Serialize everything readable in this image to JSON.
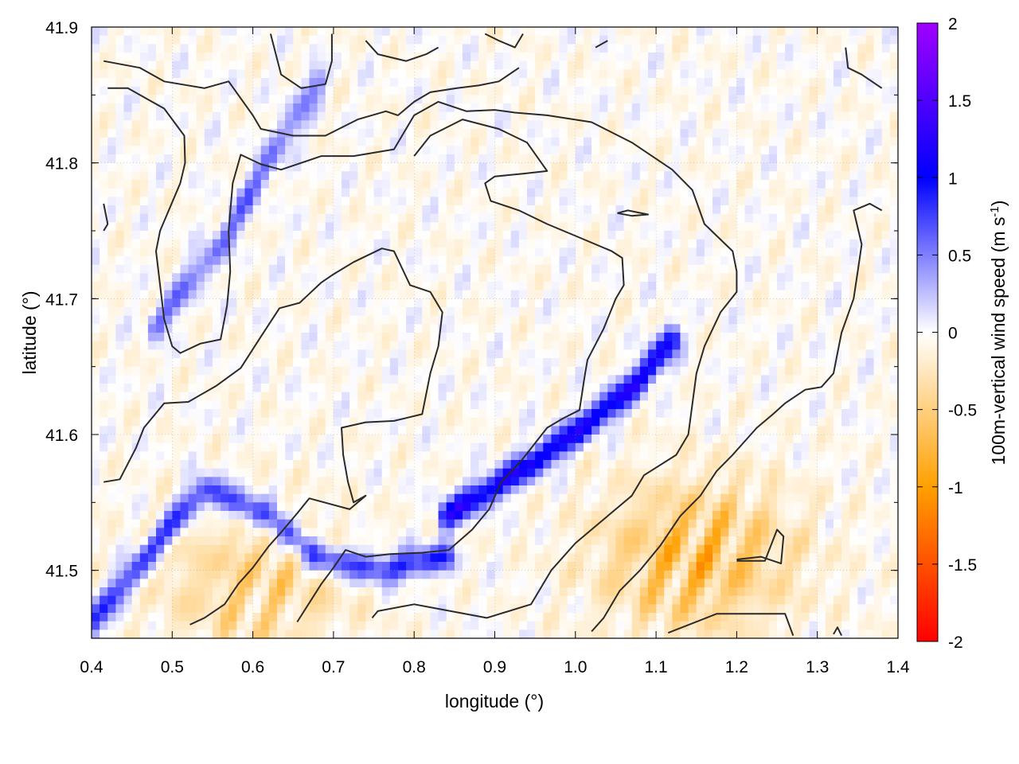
{
  "chart_data": {
    "type": "heatmap",
    "title": "",
    "xlabel": "longitude (°)",
    "ylabel": "latitude (°)",
    "colorbar_label": "100m-vertical wind speed (m s",
    "colorbar_label_sup": "-1",
    "colorbar_label_close": ")",
    "xlim": [
      0.4,
      1.4
    ],
    "ylim": [
      41.45,
      41.9
    ],
    "x_ticks": [
      0.4,
      0.5,
      0.6,
      0.7,
      0.8,
      0.9,
      1.0,
      1.1,
      1.2,
      1.3,
      1.4
    ],
    "x_tick_labels": [
      "0.4",
      "0.5",
      "0.6",
      "0.7",
      "0.8",
      "0.9",
      "1.0",
      "1.1",
      "1.2",
      "1.3",
      "1.4"
    ],
    "y_ticks": [
      41.5,
      41.6,
      41.7,
      41.8,
      41.9
    ],
    "y_tick_labels": [
      "41.5",
      "41.6",
      "41.7",
      "41.8",
      "41.9"
    ],
    "color_range": [
      -2,
      2
    ],
    "colorbar_ticks": [
      2,
      1.5,
      1,
      0.5,
      0,
      -0.5,
      -1,
      -1.5,
      -2
    ],
    "colorbar_tick_labels": [
      "2",
      "1.5",
      "1",
      "0.5",
      "0",
      "-0.5",
      "-1",
      "-1.5",
      "-2"
    ],
    "colorscale": [
      "#ff0000",
      "#ffa000",
      "#ffffff",
      "#0000ff",
      "#a000ff"
    ],
    "grid": true,
    "features": [
      {
        "type": "updraft_band",
        "value": 1.2,
        "path": [
          [
            0.84,
            41.54
          ],
          [
            0.95,
            41.58
          ],
          [
            1.02,
            41.61
          ],
          [
            1.08,
            41.64
          ],
          [
            1.12,
            41.67
          ]
        ]
      },
      {
        "type": "updraft_band",
        "value": 0.9,
        "path": [
          [
            0.4,
            41.46
          ],
          [
            0.48,
            41.52
          ],
          [
            0.54,
            41.56
          ],
          [
            0.62,
            41.54
          ],
          [
            0.68,
            41.51
          ],
          [
            0.76,
            41.5
          ],
          [
            0.84,
            41.51
          ]
        ]
      },
      {
        "type": "updraft_band",
        "value": 0.6,
        "path": [
          [
            0.48,
            41.68
          ],
          [
            0.56,
            41.74
          ],
          [
            0.62,
            41.8
          ],
          [
            0.68,
            41.86
          ]
        ]
      },
      {
        "type": "downdraft_region",
        "value": -0.8,
        "center": [
          1.15,
          41.51
        ]
      },
      {
        "type": "downdraft_region",
        "value": -0.5,
        "center": [
          0.6,
          41.49
        ]
      }
    ],
    "contours": [
      [
        [
          0.415,
          41.875
        ],
        [
          0.46,
          41.87
        ],
        [
          0.49,
          41.86
        ],
        [
          0.54,
          41.855
        ],
        [
          0.57,
          41.86
        ],
        [
          0.6,
          41.835
        ],
        [
          0.61,
          41.825
        ],
        [
          0.65,
          41.82
        ],
        [
          0.69,
          41.82
        ],
        [
          0.73,
          41.832
        ],
        [
          0.765,
          41.838
        ],
        [
          0.78,
          41.835
        ],
        [
          0.8,
          41.845
        ],
        [
          0.82,
          41.852
        ],
        [
          0.853,
          41.855
        ],
        [
          0.88,
          41.857
        ],
        [
          0.905,
          41.86
        ],
        [
          0.93,
          41.87
        ]
      ],
      [
        [
          0.622,
          41.895
        ],
        [
          0.635,
          41.865
        ],
        [
          0.66,
          41.855
        ],
        [
          0.69,
          41.858
        ],
        [
          0.698,
          41.875
        ],
        [
          0.698,
          41.895
        ]
      ],
      [
        [
          0.74,
          41.89
        ],
        [
          0.755,
          41.88
        ],
        [
          0.79,
          41.875
        ],
        [
          0.815,
          41.88
        ],
        [
          0.83,
          41.885
        ]
      ],
      [
        [
          0.888,
          41.895
        ],
        [
          0.905,
          41.89
        ],
        [
          0.925,
          41.885
        ],
        [
          0.935,
          41.895
        ]
      ],
      [
        [
          1.025,
          41.885
        ],
        [
          1.04,
          41.89
        ]
      ],
      [
        [
          1.335,
          41.885
        ],
        [
          1.338,
          41.87
        ],
        [
          1.355,
          41.865
        ],
        [
          1.38,
          41.855
        ]
      ],
      [
        [
          0.42,
          41.855
        ],
        [
          0.445,
          41.855
        ],
        [
          0.49,
          41.84
        ],
        [
          0.515,
          41.82
        ],
        [
          0.516,
          41.8
        ],
        [
          0.51,
          41.785
        ],
        [
          0.485,
          41.75
        ],
        [
          0.48,
          41.735
        ],
        [
          0.486,
          41.705
        ],
        [
          0.49,
          41.685
        ],
        [
          0.5,
          41.665
        ],
        [
          0.51,
          41.66
        ],
        [
          0.535,
          41.667
        ],
        [
          0.56,
          41.67
        ],
        [
          0.568,
          41.695
        ],
        [
          0.572,
          41.72
        ],
        [
          0.57,
          41.75
        ],
        [
          0.575,
          41.785
        ],
        [
          0.585,
          41.806
        ],
        [
          0.61,
          41.799
        ],
        [
          0.635,
          41.795
        ],
        [
          0.685,
          41.805
        ],
        [
          0.725,
          41.805
        ],
        [
          0.775,
          41.81
        ],
        [
          0.8,
          41.835
        ],
        [
          0.83,
          41.845
        ],
        [
          0.865,
          41.838
        ],
        [
          0.9,
          41.839
        ],
        [
          0.925,
          41.837
        ],
        [
          0.965,
          41.835
        ],
        [
          1.02,
          41.83
        ],
        [
          1.07,
          41.815
        ],
        [
          1.12,
          41.795
        ],
        [
          1.145,
          41.78
        ],
        [
          1.16,
          41.755
        ],
        [
          1.195,
          41.735
        ],
        [
          1.2,
          41.72
        ],
        [
          1.2,
          41.705
        ],
        [
          1.18,
          41.69
        ],
        [
          1.16,
          41.665
        ],
        [
          1.15,
          41.645
        ],
        [
          1.14,
          41.6
        ],
        [
          1.125,
          41.585
        ],
        [
          1.085,
          41.57
        ],
        [
          1.07,
          41.555
        ],
        [
          1.03,
          41.535
        ],
        [
          1.0,
          41.52
        ],
        [
          0.97,
          41.5
        ],
        [
          0.945,
          41.475
        ],
        [
          0.89,
          41.465
        ],
        [
          0.8,
          41.475
        ],
        [
          0.755,
          41.47
        ],
        [
          0.748,
          41.465
        ]
      ],
      [
        [
          0.415,
          41.565
        ],
        [
          0.435,
          41.567
        ],
        [
          0.455,
          41.59
        ],
        [
          0.465,
          41.605
        ],
        [
          0.49,
          41.623
        ],
        [
          0.52,
          41.624
        ],
        [
          0.555,
          41.636
        ],
        [
          0.585,
          41.649
        ],
        [
          0.61,
          41.672
        ],
        [
          0.633,
          41.693
        ],
        [
          0.658,
          41.697
        ],
        [
          0.685,
          41.712
        ],
        [
          0.7,
          41.718
        ],
        [
          0.725,
          41.727
        ],
        [
          0.76,
          41.737
        ],
        [
          0.775,
          41.735
        ],
        [
          0.795,
          41.71
        ],
        [
          0.82,
          41.705
        ],
        [
          0.835,
          41.69
        ],
        [
          0.83,
          41.665
        ],
        [
          0.82,
          41.645
        ],
        [
          0.81,
          41.615
        ],
        [
          0.775,
          41.61
        ],
        [
          0.74,
          41.609
        ],
        [
          0.71,
          41.605
        ],
        [
          0.712,
          41.585
        ],
        [
          0.718,
          41.565
        ],
        [
          0.725,
          41.55
        ],
        [
          0.74,
          41.555
        ],
        [
          0.72,
          41.545
        ],
        [
          0.67,
          41.553
        ],
        [
          0.655,
          41.542
        ],
        [
          0.635,
          41.528
        ],
        [
          0.62,
          41.518
        ],
        [
          0.6,
          41.502
        ],
        [
          0.582,
          41.49
        ],
        [
          0.565,
          41.475
        ],
        [
          0.54,
          41.465
        ],
        [
          0.522,
          41.46
        ]
      ],
      [
        [
          0.655,
          41.462
        ],
        [
          0.685,
          41.49
        ],
        [
          0.7,
          41.502
        ],
        [
          0.715,
          41.515
        ],
        [
          0.74,
          41.51
        ],
        [
          0.77,
          41.512
        ],
        [
          0.81,
          41.513
        ],
        [
          0.843,
          41.515
        ],
        [
          0.872,
          41.53
        ],
        [
          0.893,
          41.545
        ],
        [
          0.908,
          41.565
        ],
        [
          0.932,
          41.58
        ],
        [
          0.965,
          41.605
        ],
        [
          0.985,
          41.612
        ],
        [
          1.005,
          41.618
        ],
        [
          1.012,
          41.645
        ],
        [
          1.015,
          41.655
        ],
        [
          1.035,
          41.678
        ],
        [
          1.05,
          41.7
        ],
        [
          1.06,
          41.71
        ],
        [
          1.058,
          41.73
        ],
        [
          1.045,
          41.735
        ],
        [
          1.005,
          41.745
        ],
        [
          0.965,
          41.755
        ],
        [
          0.93,
          41.765
        ],
        [
          0.895,
          41.772
        ],
        [
          0.888,
          41.785
        ],
        [
          0.9,
          41.79
        ],
        [
          0.935,
          41.792
        ],
        [
          0.965,
          41.794
        ],
        [
          0.94,
          41.815
        ],
        [
          0.905,
          41.825
        ],
        [
          0.86,
          41.832
        ],
        [
          0.82,
          41.82
        ],
        [
          0.8,
          41.805
        ]
      ],
      [
        [
          0.415,
          41.77
        ],
        [
          0.42,
          41.755
        ],
        [
          0.415,
          41.75
        ]
      ],
      [
        [
          1.052,
          41.763
        ],
        [
          1.065,
          41.765
        ],
        [
          1.09,
          41.762
        ],
        [
          1.07,
          41.761
        ],
        [
          1.052,
          41.763
        ]
      ],
      [
        [
          1.02,
          41.455
        ],
        [
          1.035,
          41.465
        ],
        [
          1.055,
          41.485
        ],
        [
          1.08,
          41.5
        ],
        [
          1.105,
          41.518
        ],
        [
          1.13,
          41.54
        ],
        [
          1.155,
          41.555
        ],
        [
          1.175,
          41.573
        ],
        [
          1.195,
          41.585
        ],
        [
          1.21,
          41.595
        ],
        [
          1.225,
          41.605
        ],
        [
          1.245,
          41.615
        ],
        [
          1.26,
          41.623
        ],
        [
          1.285,
          41.633
        ],
        [
          1.305,
          41.635
        ],
        [
          1.32,
          41.645
        ],
        [
          1.325,
          41.66
        ],
        [
          1.33,
          41.675
        ],
        [
          1.345,
          41.7
        ],
        [
          1.35,
          41.72
        ],
        [
          1.355,
          41.74
        ],
        [
          1.345,
          41.765
        ],
        [
          1.365,
          41.77
        ],
        [
          1.38,
          41.765
        ]
      ],
      [
        [
          1.2,
          41.508
        ],
        [
          1.23,
          41.51
        ],
        [
          1.255,
          41.505
        ],
        [
          1.258,
          41.525
        ],
        [
          1.25,
          41.53
        ],
        [
          1.235,
          41.507
        ],
        [
          1.2,
          41.507
        ]
      ],
      [
        [
          1.115,
          41.454
        ],
        [
          1.175,
          41.468
        ],
        [
          1.205,
          41.468
        ],
        [
          1.26,
          41.468
        ],
        [
          1.27,
          41.452
        ]
      ],
      [
        [
          1.32,
          41.453
        ],
        [
          1.325,
          41.458
        ],
        [
          1.33,
          41.452
        ]
      ]
    ]
  }
}
